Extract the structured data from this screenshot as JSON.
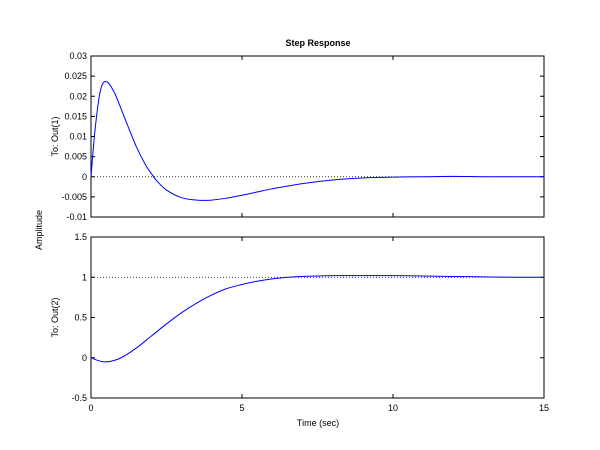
{
  "chart_data": {
    "type": "line",
    "title": "Step Response",
    "xlabel": "Time (sec)",
    "ylabel": "Amplitude",
    "xlim": [
      0,
      15
    ],
    "xticks": [
      0,
      5,
      10,
      15
    ],
    "xtick_labels": [
      "0",
      "5",
      "10",
      "15"
    ],
    "grid": false,
    "line_color": "#0000ff",
    "reference_line_color": "#000000",
    "subplots": [
      {
        "ylabel": "To: Out(1)",
        "ylim": [
          -0.01,
          0.03
        ],
        "yticks": [
          -0.01,
          -0.005,
          0,
          0.005,
          0.01,
          0.015,
          0.02,
          0.025,
          0.03
        ],
        "ytick_labels": [
          "-0.01",
          "-0.005",
          "0",
          "0.005",
          "0.01",
          "0.015",
          "0.02",
          "0.025",
          "0.03"
        ],
        "steady_state": 0,
        "series": [
          {
            "x": [
              0,
              0.1,
              0.2,
              0.3,
              0.4,
              0.5,
              0.6,
              0.8,
              1.0,
              1.2,
              1.5,
              1.8,
              2.0,
              2.2,
              2.5,
              3.0,
              3.5,
              4.0,
              4.5,
              5.0,
              5.5,
              6.0,
              7.0,
              8.0,
              9.0,
              10.0,
              11.0,
              12.0,
              13.0,
              14.0,
              15.0
            ],
            "y": [
              0,
              0.009,
              0.016,
              0.021,
              0.0233,
              0.0236,
              0.0231,
              0.0205,
              0.0168,
              0.013,
              0.0075,
              0.003,
              0.0008,
              -0.0012,
              -0.0033,
              -0.0052,
              -0.0058,
              -0.0058,
              -0.0053,
              -0.0046,
              -0.0038,
              -0.003,
              -0.0017,
              -0.0008,
              -0.0003,
              -0.0001,
              0.0,
              0.0001,
              0.0,
              0.0,
              0.0
            ]
          }
        ]
      },
      {
        "ylabel": "To: Out(2)",
        "ylim": [
          -0.5,
          1.5
        ],
        "yticks": [
          -0.5,
          0,
          0.5,
          1,
          1.5
        ],
        "ytick_labels": [
          "-0.5",
          "0",
          "0.5",
          "1",
          "1.5"
        ],
        "steady_state": 1,
        "series": [
          {
            "x": [
              0,
              0.2,
              0.4,
              0.5,
              0.7,
              1.0,
              1.5,
              2.0,
              2.5,
              3.0,
              3.5,
              4.0,
              4.5,
              5.0,
              5.5,
              6.0,
              6.5,
              7.0,
              7.5,
              8.0,
              9.0,
              10.0,
              11.0,
              12.0,
              13.0,
              14.0,
              15.0
            ],
            "y": [
              0,
              -0.03,
              -0.05,
              -0.05,
              -0.04,
              0.0,
              0.12,
              0.27,
              0.42,
              0.56,
              0.68,
              0.78,
              0.86,
              0.91,
              0.95,
              0.98,
              1.0,
              1.01,
              1.015,
              1.02,
              1.02,
              1.02,
              1.015,
              1.01,
              1.005,
              1.0,
              1.0
            ]
          }
        ]
      }
    ]
  }
}
